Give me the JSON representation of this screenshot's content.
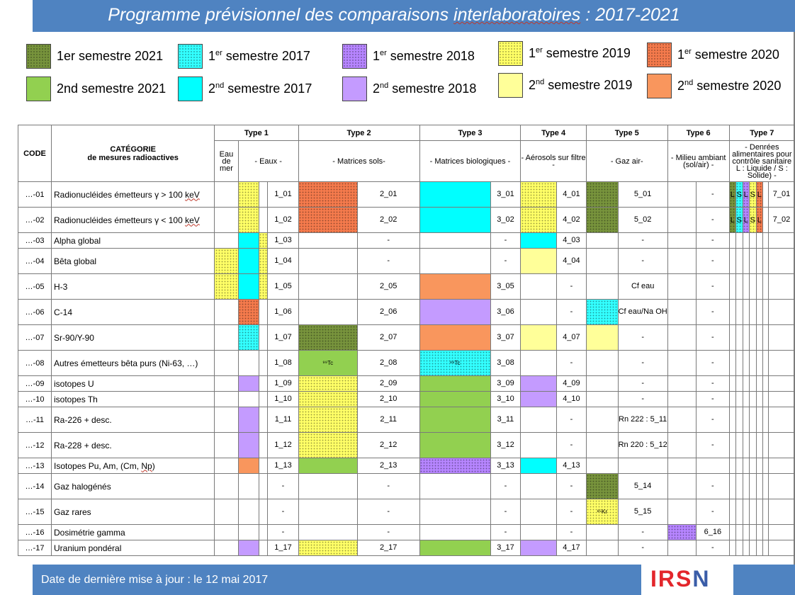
{
  "title": {
    "main": "Programme prévisionnel des comparaisons ",
    "underlined": "interlaboratoires",
    "tail": " : 2017-2021"
  },
  "legend": [
    {
      "pre": "1er semestre 2021",
      "sup": "",
      "post": "",
      "color": "#77933c",
      "dotted": true
    },
    {
      "pre": "2nd semestre 2021",
      "sup": "",
      "post": "",
      "color": "#92d050",
      "dotted": false
    },
    {
      "pre": "1",
      "sup": "er",
      "post": " semestre 2017",
      "color": "#33ffff",
      "dotted": true
    },
    {
      "pre": "2",
      "sup": "nd",
      "post": " semestre 2017",
      "color": "#00ffff",
      "dotted": false
    },
    {
      "pre": "1",
      "sup": "er",
      "post": " semestre 2018",
      "color": "#b685ff",
      "dotted": true
    },
    {
      "pre": "2",
      "sup": "nd",
      "post": " semestre 2018",
      "color": "#c49bff",
      "dotted": false
    },
    {
      "pre": "1",
      "sup": "er",
      "post": " semestre 2019",
      "color": "#ffff66",
      "dotted": true
    },
    {
      "pre": "2",
      "sup": "nd",
      "post": " semestre 2019",
      "color": "#ffff99",
      "dotted": false
    },
    {
      "pre": "1",
      "sup": "er",
      "post": " semestre 2020",
      "color": "#f47a4c",
      "dotted": true
    },
    {
      "pre": "2",
      "sup": "nd",
      "post": " semestre 2020",
      "color": "#f9965d",
      "dotted": false
    }
  ],
  "table": {
    "code_header": "CODE",
    "category_header": "CATÉGORIE",
    "category_sub": "de mesures radioactives",
    "types": [
      {
        "label": "Type 1",
        "sub": "- Eaux -",
        "extra": "Eau de mer"
      },
      {
        "label": "Type 2",
        "sub": "- Matrices sols-"
      },
      {
        "label": "Type 3",
        "sub": "- Matrices biologiques  -"
      },
      {
        "label": "Type 4",
        "sub": "- Aérosols sur filtre -"
      },
      {
        "label": "Type 5",
        "sub": "-  Gaz air-"
      },
      {
        "label": "Type 6",
        "sub": "- Milieu ambiant (sol/air) -"
      },
      {
        "label": "Type 7",
        "sub": "- Denrées alimentaires pour contrôle sanitaire",
        "sub2": "L : Liquide  / S : Solide) -"
      }
    ],
    "t7_letters": [
      "L",
      "S",
      "L",
      "S",
      "L"
    ],
    "rows": [
      {
        "code": "…-01",
        "name": "Radionucléides émetteurs γ > 100 ",
        "unit": "keV",
        "t1": [
          "",
          "y",
          ""
        ],
        "v1": "1_01",
        "t2": "o",
        "v2": "2_01",
        "t3": "C",
        "v3": "3_01",
        "t4": "y",
        "v4": "4_01",
        "t5": "g",
        "v5": "5_01",
        "t6": "",
        "v6": "-",
        "t7": 1,
        "v7": "7_01"
      },
      {
        "code": "…-02",
        "name": "Radionucléides émetteurs γ < 100 ",
        "unit": "keV",
        "t1": [
          "",
          "y",
          ""
        ],
        "v1": "1_02",
        "t2": "o",
        "v2": "2_02",
        "t3": "C",
        "v3": "3_02",
        "t4": "y",
        "v4": "4_02",
        "t5": "g",
        "v5": "5_02",
        "t6": "",
        "v6": "-",
        "t7": 1,
        "v7": "7_02"
      },
      {
        "code": "…-03",
        "name": "Alpha global",
        "t1": [
          "",
          "C",
          "y"
        ],
        "v1": "1_03",
        "t2": "",
        "v2": "-",
        "t3": "",
        "v3": "-",
        "t4": "C",
        "v4": "4_03",
        "t5": "",
        "v5": "-",
        "t6": "",
        "v6": "-",
        "t7": 0,
        "v7": ""
      },
      {
        "code": "…-04",
        "name": "Bêta global",
        "t1": [
          "y",
          "C",
          "y"
        ],
        "v1": "1_04",
        "t2": "",
        "v2": "-",
        "t3": "",
        "v3": "-",
        "t4": "Y",
        "v4": "4_04",
        "t5": "",
        "v5": "-",
        "t6": "",
        "v6": "-",
        "t7": 0,
        "v7": ""
      },
      {
        "code": "…-05",
        "name": "H-3",
        "t1": [
          "y",
          "C",
          "y"
        ],
        "v1": "1_05",
        "t2": "",
        "v2": "2_05",
        "t3": "O",
        "v3": "3_05",
        "t4": "",
        "v4": "-",
        "t5": "",
        "v5": "Cf eau",
        "t6": "",
        "v6": "-",
        "t7": 0,
        "v7": ""
      },
      {
        "code": "…-06",
        "name": "C-14",
        "t1": [
          "",
          "o",
          ""
        ],
        "v1": "1_06",
        "t2": "",
        "v2": "2_06",
        "t3": "P",
        "v3": "3_06",
        "t4": "",
        "v4": "-",
        "t5": "c",
        "v5": "Cf eau/Na OH",
        "t6": "",
        "v6": "-",
        "t7": 0,
        "v7": ""
      },
      {
        "code": "…-07",
        "name": "Sr-90/Y-90",
        "t1": [
          "",
          "c",
          ""
        ],
        "v1": "1_07",
        "t2": "g",
        "v2": "2_07",
        "t3": "O",
        "v3": "3_07",
        "t4": "Y",
        "v4": "4_07",
        "t5": "Y",
        "v5": "-",
        "t6": "",
        "v6": "-",
        "t7": 0,
        "v7": ""
      },
      {
        "code": "…-08",
        "name": "Autres  émetteurs bêta purs (Ni-63, …)",
        "t1": [
          "",
          "",
          ""
        ],
        "v1": "1_08",
        "t2": "G",
        "t2l": "⁹⁹Tc",
        "v2": "2_08",
        "t3": "c",
        "t3l": "⁹⁹Tc",
        "v3": "3_08",
        "t4": "",
        "v4": "-",
        "t5": "",
        "v5": "-",
        "t6": "",
        "v6": "-",
        "t7": 0,
        "v7": ""
      },
      {
        "code": "…-09",
        "name": "isotopes U",
        "t1": [
          "",
          "P",
          ""
        ],
        "v1": "1_09",
        "t2": "y",
        "v2": "2_09",
        "t3": "G",
        "v3": "3_09",
        "t4": "P",
        "v4": "4_09",
        "t5": "",
        "v5": "-",
        "t6": "",
        "v6": "-",
        "t7": 0,
        "v7": ""
      },
      {
        "code": "…-10",
        "name": "isotopes Th",
        "t1": [
          "",
          "",
          ""
        ],
        "v1": "1_10",
        "t2": "y",
        "v2": "2_10",
        "t3": "G",
        "v3": "3_10",
        "t4": "P",
        "v4": "4_10",
        "t5": "",
        "v5": "-",
        "t6": "",
        "v6": "-",
        "t7": 0,
        "v7": ""
      },
      {
        "code": "…-11",
        "name": "Ra-226 + desc.",
        "t1": [
          "",
          "P",
          ""
        ],
        "v1": "1_11",
        "t2": "y",
        "v2": "2_11",
        "t3": "G",
        "v3": "3_11",
        "t4": "",
        "v4": "-",
        "t5": "",
        "v5": "Rn 222 : 5_11",
        "t6": "",
        "v6": "-",
        "t7": 0,
        "v7": ""
      },
      {
        "code": "…-12",
        "name": "Ra-228 + desc.",
        "t1": [
          "",
          "P",
          ""
        ],
        "v1": "1_12",
        "t2": "y",
        "v2": "2_12",
        "t3": "G",
        "v3": "3_12",
        "t4": "",
        "v4": "-",
        "t5": "",
        "v5": "Rn 220 : 5_12",
        "t6": "",
        "v6": "-",
        "t7": 0,
        "v7": ""
      },
      {
        "code": "…-13",
        "name": "Isotopes Pu, Am,  (Cm, ",
        "unit": "Np",
        "t1": [
          "",
          "O",
          ""
        ],
        "v1": "1_13",
        "t2": "L",
        "v2": "2_13",
        "t3": "p",
        "v3": "3_13",
        "t4": "C",
        "v4": "4_13",
        "t5": "",
        "v5": "",
        "t6": "",
        "v6": "",
        "t7": 0,
        "v7": ""
      },
      {
        "code": "…-14",
        "name": "Gaz halogénés",
        "t1": [
          "",
          "",
          ""
        ],
        "v1": "-",
        "t2": "",
        "v2": "-",
        "t3": "",
        "v3": "-",
        "t4": "",
        "v4": "-",
        "t5": "g",
        "v5": "5_14",
        "t6": "",
        "v6": "-",
        "t7": 0,
        "v7": ""
      },
      {
        "code": "…-15",
        "name": "Gaz rares",
        "t1": [
          "",
          "",
          ""
        ],
        "v1": "-",
        "t2": "",
        "v2": "-",
        "t3": "",
        "v3": "-",
        "t4": "",
        "v4": "-",
        "t5": "y",
        "t5l": "⁸⁵Kr",
        "v5": "5_15",
        "t6": "",
        "v6": "-",
        "t7": 0,
        "v7": ""
      },
      {
        "code": "…-16",
        "name": "Dosimétrie gamma",
        "t1": [
          "",
          "",
          ""
        ],
        "v1": "-",
        "t2": "",
        "v2": "-",
        "t3": "",
        "v3": "-",
        "t4": "",
        "v4": "-",
        "t5": "",
        "v5": "-",
        "t6": "p",
        "v6": "6_16",
        "t7": 0,
        "v7": ""
      },
      {
        "code": "…-17",
        "name": "Uranium pondéral",
        "t1": [
          "",
          "P",
          ""
        ],
        "v1": "1_17",
        "t2": "y",
        "v2": "2_17",
        "t3": "G",
        "v3": "3_17",
        "t4": "P",
        "v4": "4_17",
        "t5": "",
        "v5": "-",
        "t6": "",
        "v6": "-",
        "t7": 0,
        "v7": ""
      }
    ]
  },
  "colors": {
    "g": "#77933c",
    "G": "#92d050",
    "L": "#92d050",
    "c": "#33ffff",
    "C": "#00ffff",
    "p": "#b685ff",
    "P": "#c49bff",
    "y": "#ffff66",
    "Y": "#ffff99",
    "o": "#f47a4c",
    "O": "#f9965d"
  },
  "t7_colors": [
    "g",
    "c",
    "p",
    "y",
    "o"
  ],
  "footer": {
    "text": "Date de dernière mise à jour : le 12 mai 2017",
    "logo_a": "IRS",
    "logo_b": "N"
  }
}
